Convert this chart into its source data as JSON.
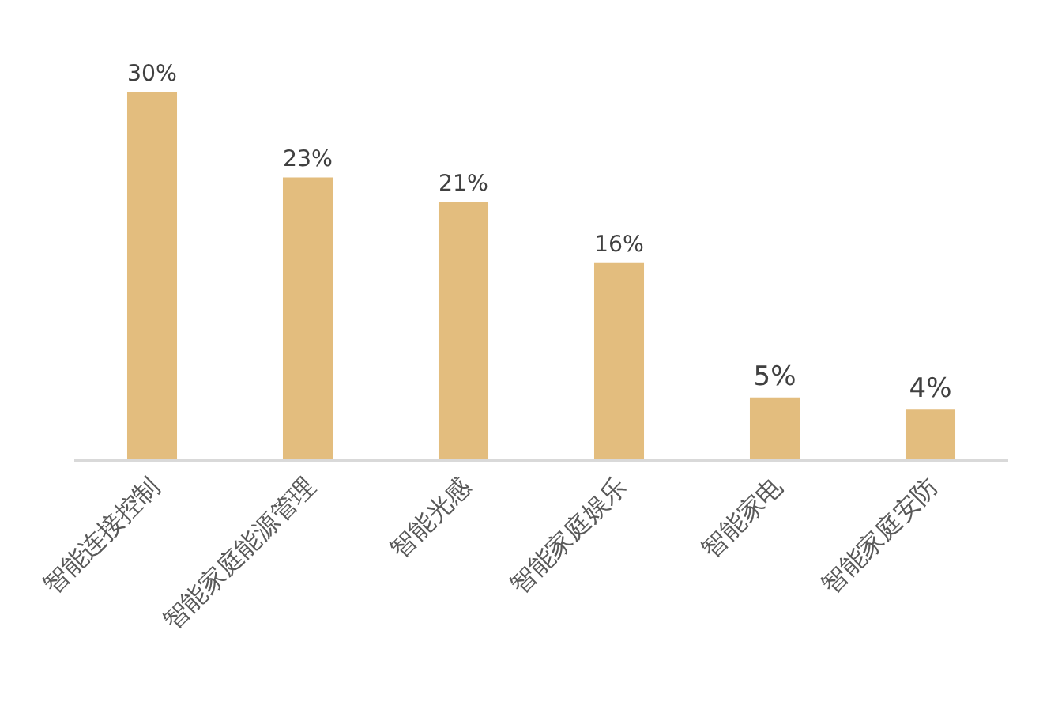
{
  "chart_data": {
    "type": "bar",
    "categories": [
      "智能连接控制",
      "智能家庭能源管理",
      "智能光感",
      "智能家庭娱乐",
      "智能家电",
      "智能家庭安防"
    ],
    "values": [
      30,
      23,
      21,
      16,
      5,
      4
    ],
    "value_labels": [
      "30%",
      "23%",
      "21%",
      "16%",
      "5%",
      "4%"
    ],
    "color": "#e3bd7e"
  }
}
